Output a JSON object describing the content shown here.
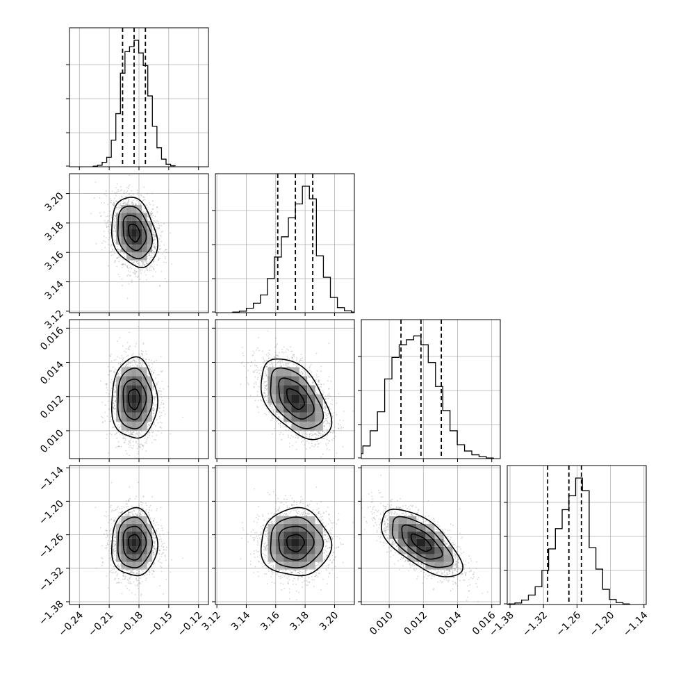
{
  "chart_data": {
    "type": "corner",
    "title": "",
    "grid": true,
    "parameters": [
      {
        "name": "",
        "range": [
          -0.25,
          -0.11
        ],
        "ticks": [
          -0.24,
          -0.21,
          -0.18,
          -0.15,
          -0.12
        ],
        "tick_labels": [
          "−0.24",
          "−0.21",
          "−0.18",
          "−0.15",
          "−0.12"
        ],
        "quantiles": [
          -0.1965,
          -0.1849,
          -0.1735
        ],
        "hist": [
          0.005,
          0.012,
          0.035,
          0.075,
          0.21,
          0.42,
          0.74,
          0.91,
          0.95,
          1.0,
          0.9,
          0.8,
          0.56,
          0.32,
          0.15,
          0.06,
          0.02,
          0.008
        ]
      },
      {
        "name": "",
        "range": [
          3.119,
          3.2135
        ],
        "ticks": [
          3.12,
          3.14,
          3.16,
          3.18,
          3.2
        ],
        "tick_labels": [
          "3.12",
          "3.14",
          "3.16",
          "3.18",
          "3.20"
        ],
        "quantiles": [
          3.1614,
          3.1734,
          3.1852
        ],
        "hist": [
          0.005,
          0.012,
          0.035,
          0.075,
          0.14,
          0.27,
          0.44,
          0.6,
          0.75,
          0.86,
          1.0,
          0.9,
          0.45,
          0.28,
          0.12,
          0.04,
          0.015,
          0.005
        ]
      },
      {
        "name": "",
        "range": [
          0.00837,
          0.0165
        ],
        "ticks": [
          0.01,
          0.012,
          0.014,
          0.016
        ],
        "tick_labels": [
          "0.010",
          "0.012",
          "0.014",
          "0.016"
        ],
        "quantiles": [
          0.01069,
          0.01186,
          0.01305
        ],
        "hist": [
          0.01,
          0.04,
          0.1,
          0.22,
          0.37,
          0.63,
          0.8,
          0.9,
          0.94,
          0.97,
          0.9,
          0.76,
          0.57,
          0.38,
          0.22,
          0.11,
          0.06,
          0.03,
          0.015,
          0.005
        ]
      },
      {
        "name": "",
        "range": [
          -1.385,
          -1.136
        ],
        "ticks": [
          -1.38,
          -1.32,
          -1.26,
          -1.2,
          -1.14
        ],
        "tick_labels": [
          "−1.38",
          "−1.32",
          "−1.26",
          "−1.20",
          "−1.14"
        ],
        "quantiles": [
          -1.3126,
          -1.2745,
          -1.2521
        ],
        "hist": [
          0.005,
          0.012,
          0.035,
          0.075,
          0.14,
          0.27,
          0.44,
          0.6,
          0.75,
          0.86,
          1.0,
          0.9,
          0.45,
          0.28,
          0.12,
          0.04,
          0.015,
          0.005
        ]
      }
    ],
    "correlations": [
      {
        "i": 1,
        "j": 0,
        "rho": -0.25
      },
      {
        "i": 2,
        "j": 0,
        "rho": 0.0
      },
      {
        "i": 2,
        "j": 1,
        "rho": -0.5
      },
      {
        "i": 3,
        "j": 0,
        "rho": 0.0
      },
      {
        "i": 3,
        "j": 1,
        "rho": 0.0
      },
      {
        "i": 3,
        "j": 2,
        "rho": -0.65
      }
    ],
    "contour_levels": [
      "0.5-sigma",
      "1-sigma",
      "1.5-sigma",
      "2-sigma"
    ],
    "colors": {
      "line": "#000000",
      "grid": "#b0b0b0",
      "points": "#888888",
      "background": "#ffffff"
    }
  }
}
